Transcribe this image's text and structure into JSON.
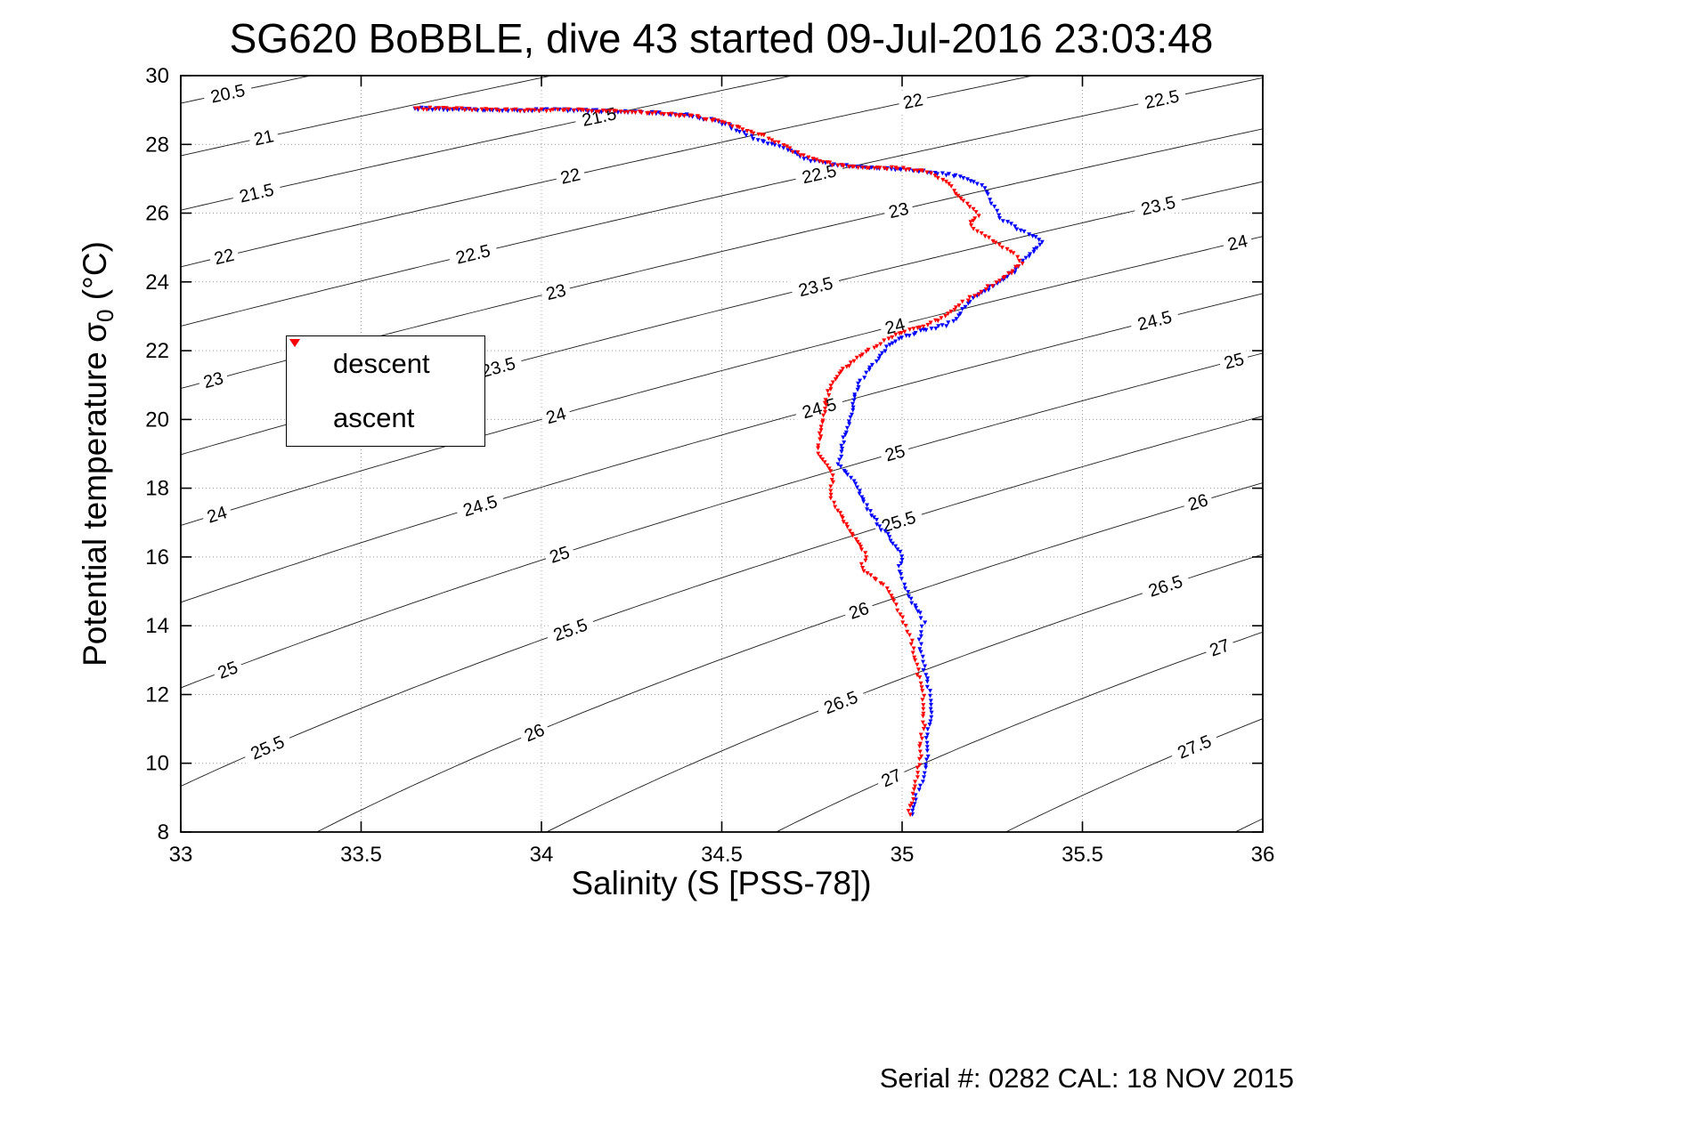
{
  "chart_data": {
    "type": "scatter",
    "title": "SG620 BoBBLE, dive 43 started 09-Jul-2016 23:03:48",
    "xlabel": "Salinity (S [PSS-78])",
    "ylabel": "Potential temperature σ_0 (°C)",
    "ylabel_parts": {
      "pre": "Potential temperature σ",
      "sub": "0",
      "post": " (°C)"
    },
    "xlim": [
      33,
      36
    ],
    "ylim": [
      8,
      30
    ],
    "xticks": {
      "values": [
        33,
        33.5,
        34,
        34.5,
        35,
        35.5,
        36
      ],
      "labels": [
        "33",
        "33.5",
        "34",
        "34.5",
        "35",
        "35.5",
        "36"
      ]
    },
    "yticks": {
      "values": [
        8,
        10,
        12,
        14,
        16,
        18,
        20,
        22,
        24,
        26,
        28,
        30
      ],
      "labels": [
        "8",
        "10",
        "12",
        "14",
        "16",
        "18",
        "20",
        "22",
        "24",
        "26",
        "28",
        "30"
      ]
    },
    "grid": true,
    "background": "#ffffff",
    "contours": {
      "comment": "isopycnal sigma-0 density contours (kg/m3)",
      "color": "#1c1c1c",
      "levels": [
        20.5,
        21,
        21.5,
        22,
        22.5,
        23,
        23.5,
        24,
        24.5,
        25,
        25.5,
        26,
        26.5,
        27,
        27.5,
        28
      ],
      "label_positions": {
        "20.5": [
          33.13
        ],
        "21": [
          33.23
        ],
        "21.5": [
          33.21,
          34.16
        ],
        "22": [
          33.12,
          34.08,
          35.03
        ],
        "22.5": [
          33.81,
          34.77,
          35.72
        ],
        "23": [
          33.09,
          34.04,
          34.99
        ],
        "23.5": [
          33.88,
          34.76,
          35.71
        ],
        "24": [
          33.1,
          34.04,
          34.98,
          35.93
        ],
        "24.5": [
          33.83,
          34.77,
          35.7
        ],
        "25": [
          33.13,
          34.05,
          34.98,
          35.92
        ],
        "25.5": [
          33.24,
          34.08,
          34.99
        ],
        "26": [
          33.98,
          34.88,
          35.82
        ],
        "26.5": [
          34.83,
          35.73
        ],
        "27": [
          34.97,
          35.88
        ],
        "27.5": [
          35.81
        ]
      }
    },
    "legend": {
      "position": "upper-left-inside",
      "entries": [
        {
          "label": "descent",
          "color": "#0000ff",
          "marker": "v"
        },
        {
          "label": "ascent",
          "color": "#ff0000",
          "marker": "v"
        }
      ]
    },
    "series": [
      {
        "name": "descent",
        "color": "#0000ff",
        "marker": "v",
        "points": [
          [
            33.65,
            29.05
          ],
          [
            33.75,
            29.02
          ],
          [
            33.9,
            29.0
          ],
          [
            34.05,
            29.0
          ],
          [
            34.18,
            28.97
          ],
          [
            34.3,
            28.93
          ],
          [
            34.4,
            28.85
          ],
          [
            34.47,
            28.72
          ],
          [
            34.52,
            28.55
          ],
          [
            34.55,
            28.38
          ],
          [
            34.6,
            28.15
          ],
          [
            34.68,
            27.85
          ],
          [
            34.73,
            27.6
          ],
          [
            34.8,
            27.42
          ],
          [
            34.95,
            27.32
          ],
          [
            35.08,
            27.2
          ],
          [
            35.17,
            27.05
          ],
          [
            35.22,
            26.8
          ],
          [
            35.24,
            26.55
          ],
          [
            35.25,
            26.3
          ],
          [
            35.26,
            26.05
          ],
          [
            35.28,
            25.8
          ],
          [
            35.32,
            25.55
          ],
          [
            35.36,
            25.35
          ],
          [
            35.39,
            25.15
          ],
          [
            35.37,
            24.95
          ],
          [
            35.35,
            24.75
          ],
          [
            35.33,
            24.55
          ],
          [
            35.31,
            24.3
          ],
          [
            35.27,
            24.0
          ],
          [
            35.22,
            23.7
          ],
          [
            35.19,
            23.45
          ],
          [
            35.17,
            23.2
          ],
          [
            35.16,
            23.0
          ],
          [
            35.12,
            22.75
          ],
          [
            35.04,
            22.55
          ],
          [
            34.99,
            22.35
          ],
          [
            34.96,
            22.1
          ],
          [
            34.94,
            21.85
          ],
          [
            34.92,
            21.6
          ],
          [
            34.9,
            21.35
          ],
          [
            34.88,
            21.05
          ],
          [
            34.87,
            20.75
          ],
          [
            34.865,
            20.45
          ],
          [
            34.86,
            20.15
          ],
          [
            34.85,
            19.85
          ],
          [
            34.84,
            19.55
          ],
          [
            34.835,
            19.25
          ],
          [
            34.83,
            18.95
          ],
          [
            34.82,
            18.7
          ],
          [
            34.845,
            18.45
          ],
          [
            34.87,
            18.15
          ],
          [
            34.885,
            17.85
          ],
          [
            34.9,
            17.5
          ],
          [
            34.92,
            17.15
          ],
          [
            34.945,
            16.8
          ],
          [
            34.97,
            16.5
          ],
          [
            34.99,
            16.25
          ],
          [
            35.0,
            16.05
          ],
          [
            34.995,
            15.85
          ],
          [
            34.99,
            15.6
          ],
          [
            35.0,
            15.35
          ],
          [
            35.01,
            15.1
          ],
          [
            35.02,
            14.85
          ],
          [
            35.035,
            14.6
          ],
          [
            35.05,
            14.35
          ],
          [
            35.06,
            14.1
          ],
          [
            35.055,
            13.85
          ],
          [
            35.05,
            13.6
          ],
          [
            35.05,
            13.35
          ],
          [
            35.055,
            13.1
          ],
          [
            35.06,
            12.85
          ],
          [
            35.065,
            12.6
          ],
          [
            35.07,
            12.35
          ],
          [
            35.075,
            12.1
          ],
          [
            35.08,
            11.85
          ],
          [
            35.08,
            11.6
          ],
          [
            35.08,
            11.35
          ],
          [
            35.075,
            11.1
          ],
          [
            35.07,
            10.85
          ],
          [
            35.07,
            10.6
          ],
          [
            35.07,
            10.35
          ],
          [
            35.07,
            10.1
          ],
          [
            35.065,
            9.85
          ],
          [
            35.06,
            9.6
          ],
          [
            35.05,
            9.35
          ],
          [
            35.04,
            9.1
          ],
          [
            35.035,
            8.85
          ],
          [
            35.03,
            8.65
          ],
          [
            35.03,
            8.5
          ]
        ]
      },
      {
        "name": "ascent",
        "color": "#ff0000",
        "marker": "v",
        "points": [
          [
            33.65,
            29.05
          ],
          [
            33.8,
            29.03
          ],
          [
            33.95,
            29.0
          ],
          [
            34.1,
            29.0
          ],
          [
            34.22,
            28.97
          ],
          [
            34.33,
            28.9
          ],
          [
            34.42,
            28.82
          ],
          [
            34.48,
            28.7
          ],
          [
            34.53,
            28.55
          ],
          [
            34.57,
            28.4
          ],
          [
            34.62,
            28.25
          ],
          [
            34.66,
            28.05
          ],
          [
            34.7,
            27.8
          ],
          [
            34.76,
            27.55
          ],
          [
            34.82,
            27.4
          ],
          [
            34.9,
            27.33
          ],
          [
            35.0,
            27.3
          ],
          [
            35.07,
            27.22
          ],
          [
            35.1,
            27.05
          ],
          [
            35.13,
            26.85
          ],
          [
            35.15,
            26.6
          ],
          [
            35.17,
            26.35
          ],
          [
            35.2,
            26.15
          ],
          [
            35.21,
            25.95
          ],
          [
            35.19,
            25.75
          ],
          [
            35.2,
            25.55
          ],
          [
            35.23,
            25.35
          ],
          [
            35.26,
            25.15
          ],
          [
            35.29,
            24.95
          ],
          [
            35.32,
            24.75
          ],
          [
            35.33,
            24.55
          ],
          [
            35.31,
            24.35
          ],
          [
            35.28,
            24.1
          ],
          [
            35.24,
            23.85
          ],
          [
            35.2,
            23.6
          ],
          [
            35.16,
            23.35
          ],
          [
            35.13,
            23.1
          ],
          [
            35.1,
            22.9
          ],
          [
            35.05,
            22.7
          ],
          [
            35.0,
            22.55
          ],
          [
            34.97,
            22.4
          ],
          [
            34.93,
            22.15
          ],
          [
            34.89,
            21.9
          ],
          [
            34.86,
            21.65
          ],
          [
            34.83,
            21.4
          ],
          [
            34.815,
            21.15
          ],
          [
            34.8,
            20.9
          ],
          [
            34.79,
            20.6
          ],
          [
            34.785,
            20.3
          ],
          [
            34.78,
            20.0
          ],
          [
            34.775,
            19.7
          ],
          [
            34.77,
            19.4
          ],
          [
            34.765,
            19.15
          ],
          [
            34.775,
            18.9
          ],
          [
            34.79,
            18.65
          ],
          [
            34.805,
            18.4
          ],
          [
            34.81,
            18.15
          ],
          [
            34.8,
            17.95
          ],
          [
            34.805,
            17.7
          ],
          [
            34.815,
            17.45
          ],
          [
            34.83,
            17.2
          ],
          [
            34.845,
            16.95
          ],
          [
            34.86,
            16.7
          ],
          [
            34.875,
            16.45
          ],
          [
            34.89,
            16.2
          ],
          [
            34.9,
            16.0
          ],
          [
            34.89,
            15.8
          ],
          [
            34.895,
            15.6
          ],
          [
            34.92,
            15.4
          ],
          [
            34.95,
            15.2
          ],
          [
            34.965,
            15.0
          ],
          [
            34.975,
            14.8
          ],
          [
            34.985,
            14.6
          ],
          [
            34.995,
            14.35
          ],
          [
            35.005,
            14.1
          ],
          [
            35.015,
            13.85
          ],
          [
            35.025,
            13.6
          ],
          [
            35.03,
            13.35
          ],
          [
            35.035,
            13.1
          ],
          [
            35.04,
            12.85
          ],
          [
            35.045,
            12.6
          ],
          [
            35.05,
            12.35
          ],
          [
            35.055,
            12.1
          ],
          [
            35.06,
            11.85
          ],
          [
            35.06,
            11.6
          ],
          [
            35.06,
            11.35
          ],
          [
            35.06,
            11.1
          ],
          [
            35.055,
            10.85
          ],
          [
            35.05,
            10.6
          ],
          [
            35.05,
            10.35
          ],
          [
            35.05,
            10.1
          ],
          [
            35.045,
            9.85
          ],
          [
            35.04,
            9.6
          ],
          [
            35.035,
            9.35
          ],
          [
            35.03,
            9.1
          ],
          [
            35.025,
            8.85
          ],
          [
            35.02,
            8.65
          ],
          [
            35.02,
            8.5
          ]
        ]
      }
    ]
  },
  "footer": {
    "serial_cal": "Serial #: 0282  CAL: 18 NOV 2015"
  }
}
